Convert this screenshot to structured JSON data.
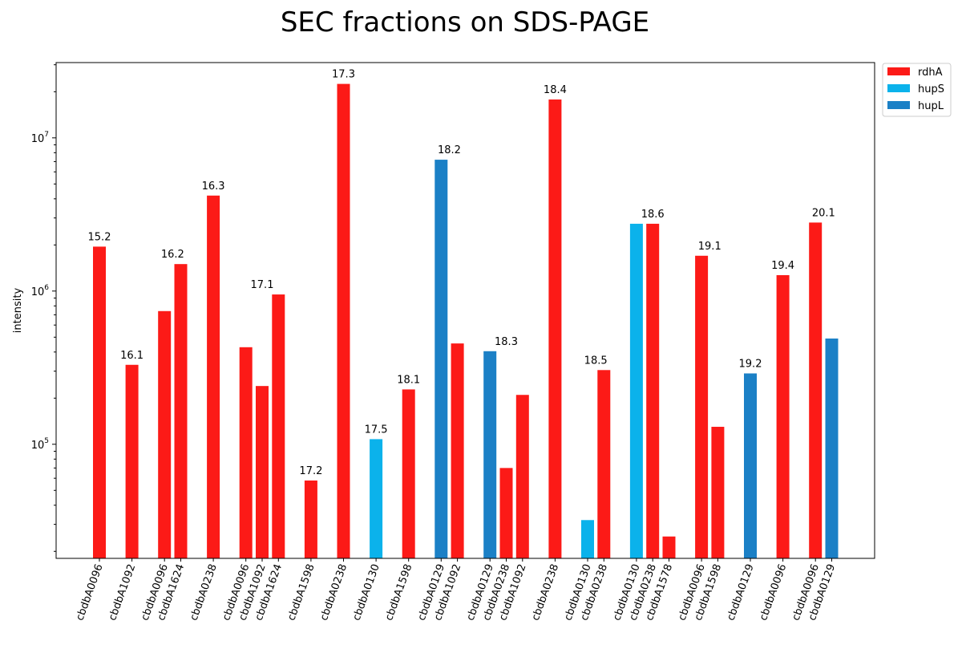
{
  "chart_data": {
    "type": "bar",
    "title": "SEC fractions on SDS-PAGE",
    "xlabel": "",
    "ylabel": "intensity",
    "yscale": "log",
    "ylim": [
      18000,
      31000000
    ],
    "y_ticks": [
      {
        "value": 100000,
        "base": "10",
        "exp": "5"
      },
      {
        "value": 1000000,
        "base": "10",
        "exp": "6"
      },
      {
        "value": 10000000,
        "base": "10",
        "exp": "7"
      }
    ],
    "legend": {
      "placement": "outside top-right",
      "entries": [
        {
          "name": "rdhA",
          "color": "#fc1a17"
        },
        {
          "name": "hupS",
          "color": "#0bb2eb"
        },
        {
          "name": "hupL",
          "color": "#1b80c6"
        }
      ]
    },
    "groups": [
      {
        "label": "15.2",
        "bars": [
          {
            "category": "cbdbA0096",
            "gene": "rdhA",
            "value": 1950000
          }
        ]
      },
      {
        "label": "16.1",
        "bars": [
          {
            "category": "cbdbA1092",
            "gene": "rdhA",
            "value": 330000
          }
        ]
      },
      {
        "label": "16.2",
        "bars": [
          {
            "category": "cbdbA0096",
            "gene": "rdhA",
            "value": 740000
          },
          {
            "category": "cbdbA1624",
            "gene": "rdhA",
            "value": 1500000
          }
        ]
      },
      {
        "label": "16.3",
        "bars": [
          {
            "category": "cbdbA0238",
            "gene": "rdhA",
            "value": 4200000
          }
        ]
      },
      {
        "label": "17.1",
        "bars": [
          {
            "category": "cbdbA0096",
            "gene": "rdhA",
            "value": 430000
          },
          {
            "category": "cbdbA1092",
            "gene": "rdhA",
            "value": 240000
          },
          {
            "category": "cbdbA1624",
            "gene": "rdhA",
            "value": 950000
          }
        ]
      },
      {
        "label": "17.2",
        "bars": [
          {
            "category": "cbdbA1598",
            "gene": "rdhA",
            "value": 58000
          }
        ]
      },
      {
        "label": "17.3",
        "bars": [
          {
            "category": "cbdbA0238",
            "gene": "rdhA",
            "value": 22500000
          }
        ]
      },
      {
        "label": "17.5",
        "bars": [
          {
            "category": "cbdbA0130",
            "gene": "hupS",
            "value": 108000
          }
        ]
      },
      {
        "label": "18.1",
        "bars": [
          {
            "category": "cbdbA1598",
            "gene": "rdhA",
            "value": 228000
          }
        ]
      },
      {
        "label": "18.2",
        "bars": [
          {
            "category": "cbdbA0129",
            "gene": "hupL",
            "value": 7200000
          },
          {
            "category": "cbdbA1092",
            "gene": "rdhA",
            "value": 455000
          }
        ]
      },
      {
        "label": "18.3",
        "bars": [
          {
            "category": "cbdbA0129",
            "gene": "hupL",
            "value": 405000
          },
          {
            "category": "cbdbA0238",
            "gene": "rdhA",
            "value": 70000
          },
          {
            "category": "cbdbA1092",
            "gene": "rdhA",
            "value": 210000
          }
        ]
      },
      {
        "label": "18.4",
        "bars": [
          {
            "category": "cbdbA0238",
            "gene": "rdhA",
            "value": 17800000
          }
        ]
      },
      {
        "label": "18.5",
        "bars": [
          {
            "category": "cbdbA0130",
            "gene": "hupS",
            "value": 32000
          },
          {
            "category": "cbdbA0238",
            "gene": "rdhA",
            "value": 305000
          }
        ]
      },
      {
        "label": "18.6",
        "bars": [
          {
            "category": "cbdbA0130",
            "gene": "hupS",
            "value": 2750000
          },
          {
            "category": "cbdbA0238",
            "gene": "rdhA",
            "value": 2750000
          },
          {
            "category": "cbdbA1578",
            "gene": "rdhA",
            "value": 25000
          }
        ]
      },
      {
        "label": "19.1",
        "bars": [
          {
            "category": "cbdbA0096",
            "gene": "rdhA",
            "value": 1700000
          },
          {
            "category": "cbdbA1598",
            "gene": "rdhA",
            "value": 130000
          }
        ]
      },
      {
        "label": "19.2",
        "bars": [
          {
            "category": "cbdbA0129",
            "gene": "hupL",
            "value": 290000
          }
        ]
      },
      {
        "label": "19.4",
        "bars": [
          {
            "category": "cbdbA0096",
            "gene": "rdhA",
            "value": 1270000
          }
        ]
      },
      {
        "label": "20.1",
        "bars": [
          {
            "category": "cbdbA0096",
            "gene": "rdhA",
            "value": 2800000
          },
          {
            "category": "cbdbA0129",
            "gene": "hupL",
            "value": 490000
          }
        ]
      }
    ]
  }
}
